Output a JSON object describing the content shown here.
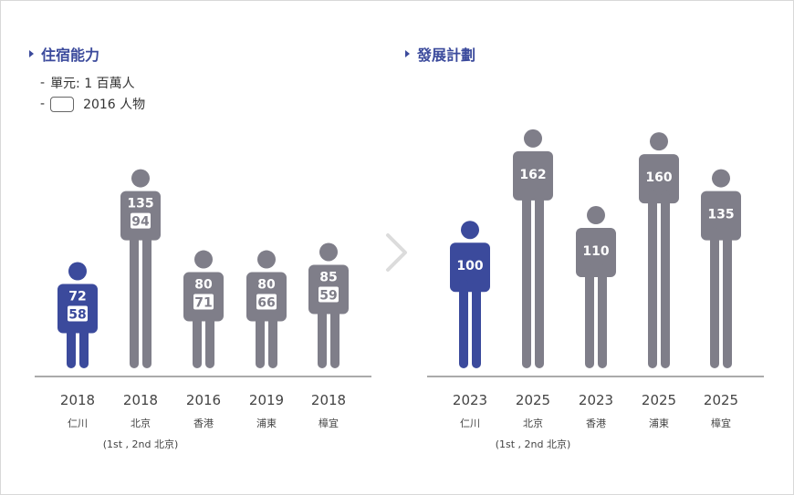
{
  "colors": {
    "accent": "#3b4a9c",
    "gray": "#7f7e89",
    "axis": "#555555",
    "title": "#3b4a9c"
  },
  "left_title": "住宿能力",
  "right_title": "發展計劃",
  "legend": {
    "unit": "單元: 1 百萬人",
    "box_label": "2016 人物",
    "dash": "-"
  },
  "chart_data": [
    {
      "type": "pictogram-bar",
      "title": "住宿能力",
      "unit": "單元: 1 百萬人",
      "categories": [
        "仁川",
        "北京",
        "香港",
        "浦東",
        "樟宜"
      ],
      "years": [
        "2018",
        "2018",
        "2016",
        "2019",
        "2018"
      ],
      "series": [
        {
          "name": "capacity",
          "values": [
            72,
            135,
            80,
            80,
            85
          ]
        },
        {
          "name": "2016 人物",
          "values": [
            58,
            94,
            71,
            66,
            59
          ]
        }
      ],
      "note": "(1st , 2nd 北京)",
      "highlight": "仁川"
    },
    {
      "type": "pictogram-bar",
      "title": "發展計劃",
      "categories": [
        "仁川",
        "北京",
        "香港",
        "浦東",
        "樟宜"
      ],
      "years": [
        "2023",
        "2025",
        "2023",
        "2025",
        "2025"
      ],
      "series": [
        {
          "name": "capacity",
          "values": [
            100,
            162,
            110,
            160,
            135
          ]
        }
      ],
      "note": "(1st , 2nd 北京)",
      "highlight": "仁川"
    }
  ]
}
